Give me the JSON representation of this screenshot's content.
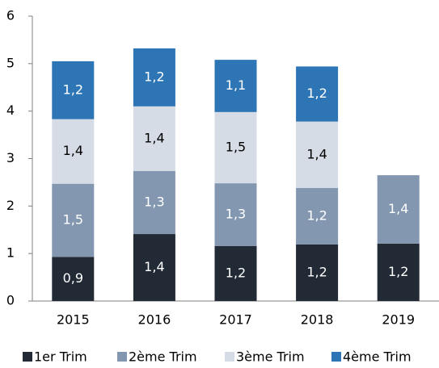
{
  "chart_data": {
    "type": "stacked_bar",
    "categories": [
      "2015",
      "2016",
      "2017",
      "2018",
      "2019"
    ],
    "series": [
      {
        "name": "1er Trim",
        "color": "#222a35",
        "values": [
          0.93,
          1.41,
          1.16,
          1.19,
          1.21
        ],
        "value_labels": [
          "0,9",
          "1,4",
          "1,2",
          "1,2",
          "1,2"
        ]
      },
      {
        "name": "2ème Trim",
        "color": "#8497b0",
        "values": [
          1.54,
          1.33,
          1.32,
          1.19,
          1.44
        ],
        "value_labels": [
          "1,5",
          "1,3",
          "1,3",
          "1,2",
          "1,4"
        ]
      },
      {
        "name": "3ème Trim",
        "color": "#d6dce5",
        "values": [
          1.36,
          1.36,
          1.5,
          1.4,
          null
        ],
        "value_labels": [
          "1,4",
          "1,4",
          "1,5",
          "1,4",
          null
        ]
      },
      {
        "name": "4ème Trim",
        "color": "#2e75b6",
        "values": [
          1.22,
          1.22,
          1.1,
          1.16,
          null
        ],
        "value_labels": [
          "1,2",
          "1,2",
          "1,1",
          "1,2",
          null
        ]
      }
    ],
    "ylim": [
      0,
      6
    ],
    "yticks": [
      0,
      1,
      2,
      3,
      4,
      5,
      6
    ],
    "grid": false,
    "legend": "bottom"
  }
}
